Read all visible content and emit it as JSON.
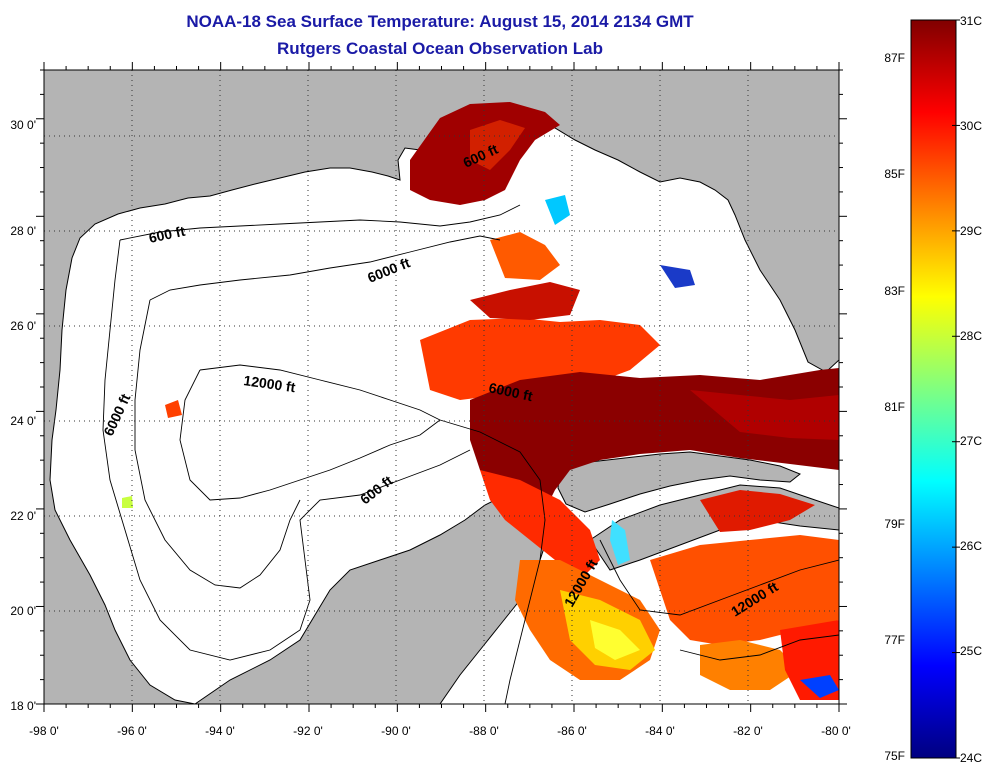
{
  "header": {
    "title": "NOAA-18 Sea Surface Temperature:  August 15, 2014 2134 GMT",
    "subtitle": "Rutgers Coastal Ocean Observation Lab"
  },
  "map": {
    "lon_range": [
      -98,
      -80
    ],
    "lat_range": [
      18,
      31
    ],
    "x_ticks": [
      "-98 0'",
      "-96 0'",
      "-94 0'",
      "-92 0'",
      "-90 0'",
      "-88 0'",
      "-86 0'",
      "-84 0'",
      "-82 0'",
      "-80 0'"
    ],
    "y_ticks": [
      "18 0'",
      "20 0'",
      "22 0'",
      "24 0'",
      "26 0'",
      "28 0'",
      "30 0'"
    ],
    "contour_labels": [
      "600 ft",
      "6000 ft",
      "12000 ft",
      "6000 ft",
      "6000 ft",
      "600 ft",
      "12000 ft",
      "12000 ft",
      "600 ft"
    ]
  },
  "colorbar": {
    "min_c": 24,
    "max_c": 31,
    "celsius_labels": [
      "31C",
      "30C",
      "29C",
      "28C",
      "27C",
      "26C",
      "25C",
      "24C"
    ],
    "fahrenheit_labels": [
      "87F",
      "85F",
      "83F",
      "81F",
      "79F",
      "77F",
      "75F"
    ],
    "colors": [
      "#800000",
      "#ff0000",
      "#ff8000",
      "#ffff00",
      "#80ff80",
      "#00ffff",
      "#0080ff",
      "#0000ff",
      "#000080"
    ]
  }
}
